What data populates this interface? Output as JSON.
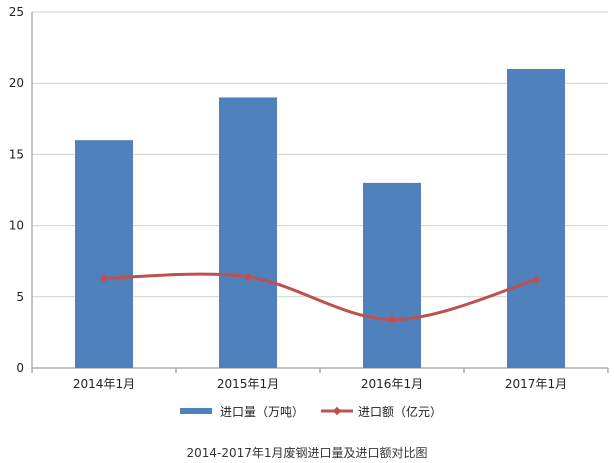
{
  "chart_data": {
    "type": "bar",
    "categories": [
      "2014年1月",
      "2015年1月",
      "2016年1月",
      "2017年1月"
    ],
    "series": [
      {
        "name": "进口量（万吨）",
        "type": "bar",
        "values": [
          16,
          19,
          13,
          21
        ],
        "color": "#4f81bd"
      },
      {
        "name": "进口额（亿元）",
        "type": "line",
        "smooth": true,
        "values": [
          6.3,
          6.4,
          3.4,
          6.2
        ],
        "color": "#c0504d"
      }
    ],
    "ylim": [
      0,
      25
    ],
    "yticks": [
      0,
      5,
      10,
      15,
      20,
      25
    ],
    "grid": true,
    "legend_position": "bottom",
    "caption": "2014-2017年1月废钢进口量及进口额对比图"
  }
}
